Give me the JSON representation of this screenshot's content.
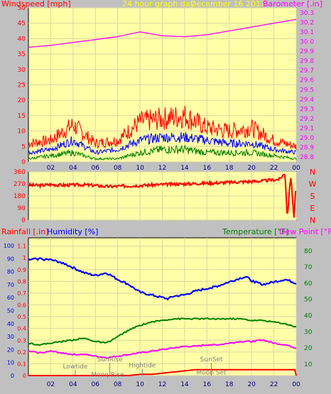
{
  "chart_data": [
    {
      "type": "line",
      "panel": "wind_barometer",
      "title": "24 hour graph day",
      "date": "December 16 2017",
      "ylabel_left": "Windspeed [mph]",
      "ylabel_right": "Barometer [.in]",
      "x_ticks": [
        "02",
        "04",
        "06",
        "08",
        "10",
        "12",
        "14",
        "16",
        "18",
        "20",
        "22",
        "00"
      ],
      "y_left_ticks": [
        0,
        5,
        10,
        15,
        20,
        25,
        30,
        35,
        40,
        45,
        50
      ],
      "y_left_lim": [
        0,
        50
      ],
      "y_right_ticks": [
        28.8,
        28.9,
        29.0,
        29.1,
        29.2,
        29.3,
        29.4,
        29.5,
        29.6,
        29.7,
        29.8,
        29.9,
        30.0,
        30.1,
        30.2,
        30.3
      ],
      "y_right_lim": [
        28.75,
        30.35
      ],
      "grid": true,
      "colors": {
        "gust": "#ff0000",
        "avg": "#0000ff",
        "min": "#008000",
        "barometer": "#ff00ff",
        "background": "#ffffa8"
      },
      "series": [
        {
          "key": "barometer",
          "axis": "right",
          "hours": [
            0,
            2,
            4,
            6,
            8,
            10,
            12,
            14,
            16,
            18,
            20,
            22,
            24
          ],
          "values": [
            29.94,
            29.96,
            29.99,
            30.02,
            30.05,
            30.1,
            30.06,
            30.05,
            30.07,
            30.11,
            30.15,
            30.19,
            30.23
          ]
        },
        {
          "key": "gust",
          "axis": "left",
          "hours": [
            0,
            2,
            4,
            6,
            8,
            10,
            12,
            14,
            16,
            18,
            20,
            22,
            24
          ],
          "values": [
            6,
            7,
            12,
            6,
            7,
            13,
            14,
            15,
            11,
            10,
            11,
            7,
            5
          ]
        },
        {
          "key": "avg",
          "axis": "left",
          "hours": [
            0,
            2,
            4,
            6,
            8,
            10,
            12,
            14,
            16,
            18,
            20,
            22,
            24
          ],
          "values": [
            3,
            4,
            7,
            3,
            4,
            7,
            8,
            8,
            7,
            6,
            6,
            4,
            3
          ]
        },
        {
          "key": "min",
          "axis": "left",
          "hours": [
            0,
            2,
            4,
            6,
            8,
            10,
            12,
            14,
            16,
            18,
            20,
            22,
            24
          ],
          "values": [
            1,
            2,
            3,
            1,
            1,
            3,
            4,
            4,
            3,
            3,
            3,
            2,
            1
          ]
        }
      ]
    },
    {
      "type": "line",
      "panel": "wind_direction",
      "y_left_ticks": [
        0,
        90,
        180,
        270,
        360
      ],
      "y_left_lim": [
        0,
        360
      ],
      "compass_labels": [
        "N",
        "W",
        "S",
        "E",
        "N"
      ],
      "grid": true,
      "colors": {
        "direction": "#ff0000",
        "background": "#ffffa8"
      },
      "series": [
        {
          "key": "direction",
          "hours": [
            0,
            1,
            2,
            3,
            4,
            5,
            6,
            7,
            8,
            9,
            10,
            11,
            12,
            13,
            14,
            15,
            16,
            17,
            18,
            19,
            20,
            21,
            22,
            22.5,
            23,
            23.2,
            23.5,
            23.8,
            24
          ],
          "values": [
            262,
            258,
            265,
            260,
            262,
            263,
            258,
            250,
            252,
            255,
            258,
            262,
            265,
            268,
            270,
            272,
            275,
            278,
            282,
            285,
            288,
            292,
            300,
            305,
            350,
            10,
            340,
            20,
            310
          ]
        }
      ]
    },
    {
      "type": "line",
      "panel": "rain_humidity_temperature",
      "ylabel_rain": "Rainfall [.in]",
      "ylabel_humidity": "Humidity [%]",
      "ylabel_temperature": "Temperature [°F]",
      "ylabel_dewpoint": "Dew Point [°F]",
      "x_ticks": [
        "02",
        "04",
        "06",
        "08",
        "10",
        "12",
        "14",
        "16",
        "18",
        "20",
        "22",
        "00"
      ],
      "y_rain_ticks": [
        0,
        0.1,
        0.2,
        0.3,
        0.4,
        0.5,
        0.6,
        0.7,
        0.8,
        0.9,
        1,
        1.1
      ],
      "y_humidity_ticks": [
        0,
        10,
        20,
        30,
        40,
        50,
        60,
        70,
        80,
        90,
        100
      ],
      "y_temp_ticks": [
        10,
        20,
        30,
        40,
        50,
        60,
        70,
        80
      ],
      "y_rain_lim": [
        0,
        1.17
      ],
      "y_humidity_lim": [
        0,
        106
      ],
      "y_temp_lim": [
        3,
        88
      ],
      "grid": true,
      "colors": {
        "rain": "#ff0000",
        "humidity": "#0000ff",
        "temperature": "#008000",
        "dewpoint": "#ff00ff",
        "annotations": "#808080",
        "background": "#ffffa8"
      },
      "series": [
        {
          "key": "humidity",
          "axis": "humidity",
          "hours": [
            0,
            1,
            2,
            3,
            4,
            5,
            6,
            7,
            8,
            9,
            10,
            11,
            12,
            12.5,
            13,
            14,
            15,
            16,
            17,
            18,
            19,
            19.5,
            20,
            21,
            22,
            23,
            24
          ],
          "values": [
            89,
            90,
            89,
            87,
            83,
            79,
            77,
            79,
            74,
            70,
            64,
            62,
            60,
            59,
            61,
            62,
            65,
            67,
            69,
            72,
            75,
            76,
            73,
            70,
            72,
            74,
            71
          ]
        },
        {
          "key": "temperature",
          "axis": "temp",
          "hours": [
            0,
            1,
            2,
            3,
            4,
            5,
            6,
            7,
            8,
            9,
            10,
            11,
            12,
            13,
            14,
            15,
            16,
            17,
            18,
            19,
            20,
            21,
            22,
            23,
            24
          ],
          "values": [
            23,
            22,
            23,
            24,
            25,
            26,
            24,
            23,
            27,
            31,
            34,
            36,
            37,
            38,
            38,
            38,
            38,
            38,
            38,
            38,
            37,
            37,
            36,
            35,
            33
          ]
        },
        {
          "key": "dewpoint",
          "axis": "temp",
          "hours": [
            0,
            1,
            2,
            3,
            4,
            5,
            6,
            7,
            8,
            9,
            10,
            11,
            12,
            13,
            14,
            15,
            16,
            17,
            18,
            19,
            20,
            21,
            22,
            23,
            24
          ],
          "values": [
            18,
            17,
            18,
            17,
            16,
            16,
            15,
            14,
            15,
            16,
            17,
            18,
            19,
            20,
            21,
            21,
            22,
            22,
            23,
            24,
            24,
            25,
            23,
            22,
            20
          ]
        },
        {
          "key": "rain",
          "axis": "rain",
          "hours": [
            0,
            8,
            9,
            10,
            11,
            12,
            13,
            14,
            15,
            16,
            17,
            18,
            19,
            20,
            21,
            22,
            23,
            23.9,
            24
          ],
          "values": [
            0,
            0,
            0,
            0.01,
            0.01,
            0.02,
            0.03,
            0.04,
            0.05,
            0.05,
            0.05,
            0.05,
            0.05,
            0.05,
            0.05,
            0.05,
            0.05,
            0.05,
            0
          ]
        }
      ],
      "annotations": [
        {
          "label": "Lowtide",
          "hour": 4.2,
          "level": 0.06
        },
        {
          "label": "SunRise",
          "hour": 7.3,
          "level": 0.12
        },
        {
          "label": "Moon Rise",
          "hour": 7.1,
          "level": -0.01
        },
        {
          "label": "Hightide",
          "hour": 10.2,
          "level": 0.07
        },
        {
          "label": "SunSet",
          "hour": 16.4,
          "level": 0.12
        },
        {
          "label": "Moon Set",
          "hour": 16.4,
          "level": 0.01
        }
      ]
    }
  ]
}
